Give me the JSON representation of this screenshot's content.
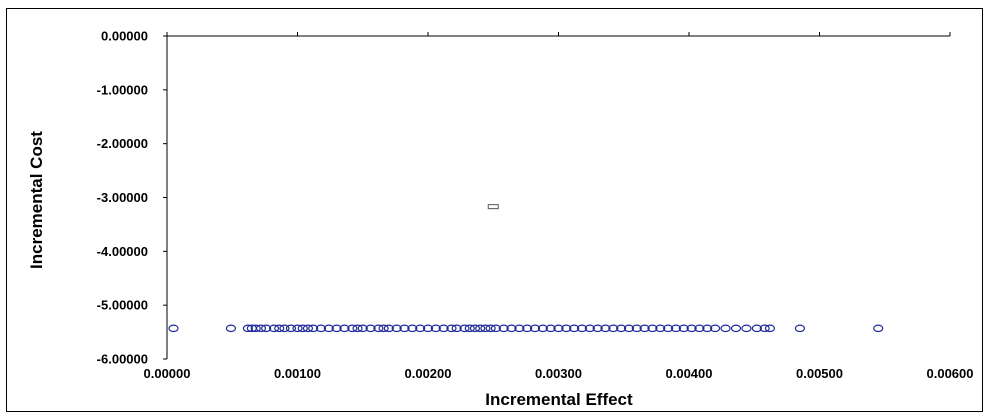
{
  "chart_data": {
    "type": "scatter",
    "title": "",
    "xlabel": "Incremental Effect",
    "ylabel": "Incremental Cost",
    "xlim": [
      0.0,
      0.006
    ],
    "ylim": [
      -6.0,
      0.0
    ],
    "x_ticks": [
      "0.00000",
      "0.00100",
      "0.00200",
      "0.00300",
      "0.00400",
      "0.00500",
      "0.00600"
    ],
    "y_ticks": [
      "0.00000",
      "-1.00000",
      "-2.00000",
      "-3.00000",
      "-4.00000",
      "-5.00000",
      "-6.00000"
    ],
    "grid": false,
    "colors": {
      "points": "#1f2a9a",
      "mean_marker": "#555555",
      "axis": "#000000"
    },
    "series": [
      {
        "marker": "circle",
        "y_value": -5.43,
        "x": [
          5e-05,
          0.00049,
          0.00062,
          0.00065,
          0.00068,
          0.00072,
          0.00076,
          0.00082,
          0.00086,
          0.0009,
          0.00095,
          0.001,
          0.00104,
          0.00108,
          0.00112,
          0.00118,
          0.00124,
          0.0013,
          0.00136,
          0.00142,
          0.00146,
          0.0015,
          0.00156,
          0.00162,
          0.00166,
          0.0017,
          0.00176,
          0.00182,
          0.00188,
          0.00194,
          0.002,
          0.00206,
          0.00212,
          0.00218,
          0.00222,
          0.00228,
          0.00232,
          0.00236,
          0.0024,
          0.00244,
          0.00248,
          0.00252,
          0.00258,
          0.00264,
          0.0027,
          0.00276,
          0.00282,
          0.00288,
          0.00294,
          0.003,
          0.00306,
          0.00312,
          0.00318,
          0.00324,
          0.0033,
          0.00336,
          0.00342,
          0.00348,
          0.00354,
          0.0036,
          0.00366,
          0.00372,
          0.00378,
          0.00384,
          0.0039,
          0.00396,
          0.00402,
          0.00408,
          0.00414,
          0.0042,
          0.00428,
          0.00436,
          0.00444,
          0.00452,
          0.00458,
          0.00462,
          0.00485,
          0.00545
        ]
      },
      {
        "marker": "rectangle",
        "x": [
          0.0025
        ],
        "y": [
          -3.17
        ]
      }
    ]
  }
}
